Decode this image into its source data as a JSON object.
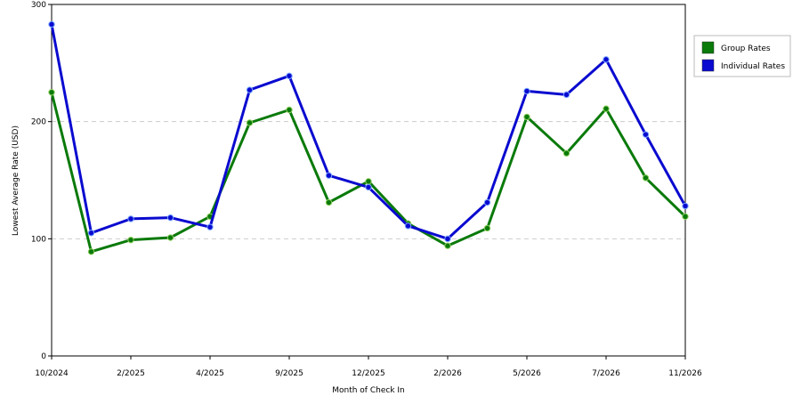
{
  "chart_data": {
    "type": "line",
    "title": "",
    "xlabel": "Month of Check In",
    "ylabel": "Lowest Average Rate (USD)",
    "ylim": [
      0,
      300
    ],
    "yticks": [
      0,
      100,
      200,
      300
    ],
    "x_tick_labels": [
      "10/2024",
      "2/2025",
      "4/2025",
      "9/2025",
      "12/2025",
      "2/2026",
      "5/2026",
      "7/2026",
      "11/2026"
    ],
    "x_tick_positions": [
      0,
      2,
      4,
      6,
      8,
      10,
      12,
      14,
      16
    ],
    "grid": "horizontal dashed",
    "legend_position": "right",
    "series": [
      {
        "name": "Group Rates",
        "color": "#0a7a0a",
        "values": [
          225,
          89,
          99,
          101,
          119,
          199,
          210,
          131,
          149,
          113,
          94,
          109,
          204,
          173,
          211,
          152,
          119
        ]
      },
      {
        "name": "Individual Rates",
        "color": "#0a0ad0",
        "values": [
          283,
          105,
          117,
          118,
          110,
          227,
          239,
          154,
          144,
          111,
          100,
          131,
          226,
          223,
          253,
          189,
          128
        ]
      }
    ]
  }
}
